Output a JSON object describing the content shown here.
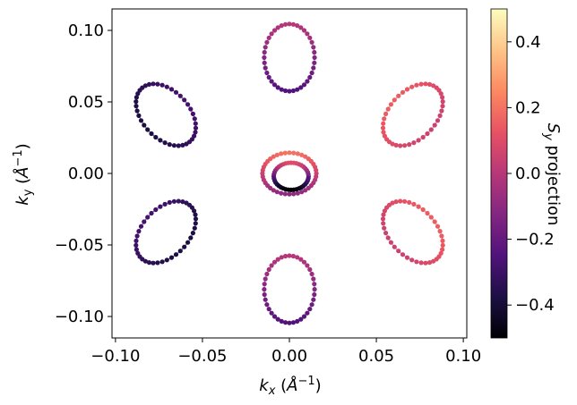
{
  "chart_data": {
    "type": "scatter",
    "xlabel": "k_x (Å⁻¹)",
    "ylabel": "k_y (Å⁻¹)",
    "colorbar_label": "S_y projection",
    "xlim": [
      -0.102,
      0.102
    ],
    "ylim": [
      -0.115,
      0.115
    ],
    "x_ticks": [
      -0.1,
      -0.05,
      0.0,
      0.05,
      0.1
    ],
    "x_tick_labels": [
      "−0.10",
      "−0.05",
      "0.00",
      "0.05",
      "0.10"
    ],
    "y_ticks": [
      -0.1,
      -0.05,
      0.0,
      0.05,
      0.1
    ],
    "y_tick_labels": [
      "−0.10",
      "−0.05",
      "0.00",
      "0.05",
      "0.10"
    ],
    "colorbar": {
      "colormap": "magma",
      "range": [
        -0.5,
        0.5
      ],
      "ticks": [
        -0.4,
        -0.2,
        0.0,
        0.2,
        0.4
      ],
      "tick_labels": [
        "−0.4",
        "−0.2",
        "0.0",
        "0.2",
        "0.4"
      ]
    },
    "grid": false,
    "contours": [
      {
        "cx": 0.0,
        "cy": 0.081,
        "rx": 0.0145,
        "ry": 0.0235,
        "tilt_deg": 0,
        "s_min": -0.25,
        "s_max": 0.0
      },
      {
        "cx": 0.0,
        "cy": -0.081,
        "rx": 0.0145,
        "ry": 0.0235,
        "tilt_deg": 0,
        "s_min": -0.25,
        "s_max": 0.0
      },
      {
        "cx": -0.071,
        "cy": 0.041,
        "rx": 0.0235,
        "ry": 0.0145,
        "tilt_deg": -60,
        "s_min": -0.38,
        "s_max": -0.28
      },
      {
        "cx": -0.071,
        "cy": -0.041,
        "rx": 0.0235,
        "ry": 0.0145,
        "tilt_deg": 60,
        "s_min": -0.38,
        "s_max": -0.28
      },
      {
        "cx": 0.071,
        "cy": 0.041,
        "rx": 0.0235,
        "ry": 0.0145,
        "tilt_deg": 60,
        "s_min": 0.05,
        "s_max": 0.15
      },
      {
        "cx": 0.071,
        "cy": -0.041,
        "rx": 0.0235,
        "ry": 0.0145,
        "tilt_deg": -60,
        "s_min": 0.05,
        "s_max": 0.15
      },
      {
        "cx": 0.0,
        "cy": 0.0,
        "rx": 0.0155,
        "ry": 0.0145,
        "tilt_deg": 0,
        "s_min": -0.1,
        "s_max": 0.2
      },
      {
        "cx": 0.001,
        "cy": -0.002,
        "rx": 0.01,
        "ry": 0.0095,
        "tilt_deg": 0,
        "s_min": -0.5,
        "s_max": 0.1
      }
    ]
  }
}
